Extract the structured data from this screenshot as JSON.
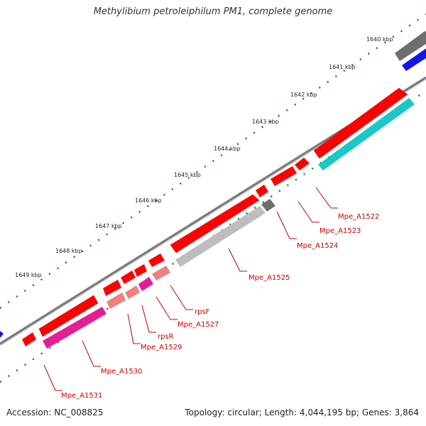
{
  "title": "Methylibium petroleiphilum PM1, complete genome",
  "accession": "Accession: NC_008825",
  "summary": "Topology: circular; Length: 4,044,195 bp; Genes: 3,864",
  "ticks": [
    "1640 kbp",
    "1641 kbp",
    "1642 kbp",
    "1643 kbp",
    "1644 kbp",
    "1645 kbp",
    "1646 kbp",
    "1647 kbp",
    "1648 kbp",
    "1649 kbp"
  ],
  "gene_labels": [
    "Mpe_A1522",
    "Mpe_A1523",
    "Mpe_A1524",
    "Mpe_A1525",
    "rpsF",
    "Mpe_A1527",
    "rpsR",
    "Mpe_A1529",
    "Mpe_A1530",
    "Mpe_A1531"
  ],
  "colors": {
    "backbone": "#777777",
    "gene_forward": "#ff0000",
    "gene_cyan": "#19c8c8",
    "gene_magenta": "#e61e96",
    "gene_gray": "#bdbdbd",
    "gene_dark_gray": "#6e6e6e",
    "gene_blue": "#1414e6",
    "gene_pink": "#f08080",
    "gc_dots": "#1a7a1a",
    "label_text": "#cc0000"
  }
}
